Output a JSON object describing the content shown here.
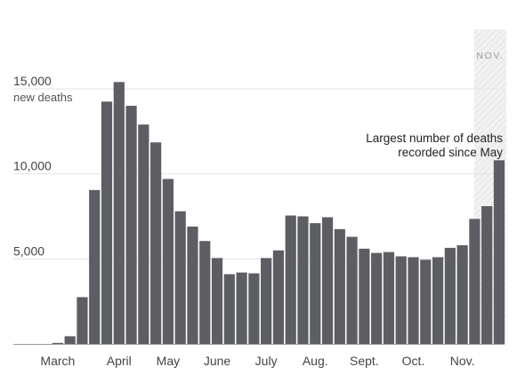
{
  "chart_data": {
    "type": "bar",
    "colors": {
      "bar": "#5d5e63",
      "highlight_band": "#ececec",
      "grid": "#e3e3e3"
    },
    "ylabel": "new deaths",
    "ylim": [
      0,
      18500
    ],
    "yticks": [
      {
        "value": 5000,
        "label": "5,000"
      },
      {
        "value": 10000,
        "label": "10,000"
      },
      {
        "value": 15000,
        "label": "15,000"
      }
    ],
    "xticks": [
      {
        "index": 1,
        "label": "March"
      },
      {
        "index": 6,
        "label": "April"
      },
      {
        "index": 10,
        "label": "May"
      },
      {
        "index": 14,
        "label": "June"
      },
      {
        "index": 18,
        "label": "July"
      },
      {
        "index": 22,
        "label": "Aug."
      },
      {
        "index": 26,
        "label": "Sept."
      },
      {
        "index": 30,
        "label": "Oct."
      },
      {
        "index": 34,
        "label": "Nov."
      }
    ],
    "values": [
      0,
      60,
      450,
      2750,
      9050,
      14250,
      15400,
      14000,
      12900,
      11850,
      9700,
      7800,
      6900,
      6050,
      5050,
      4100,
      4200,
      4150,
      5050,
      5500,
      7550,
      7500,
      7100,
      7450,
      6750,
      6300,
      5600,
      5350,
      5400,
      5150,
      5100,
      4950,
      5100,
      5650,
      5800,
      7350,
      8100,
      10800
    ],
    "highlight": {
      "label": "NOV.",
      "start_index": 36,
      "end_index": 37
    },
    "annotation": {
      "lines": [
        "Largest number of deaths",
        "recorded since May"
      ],
      "index": 37
    }
  }
}
